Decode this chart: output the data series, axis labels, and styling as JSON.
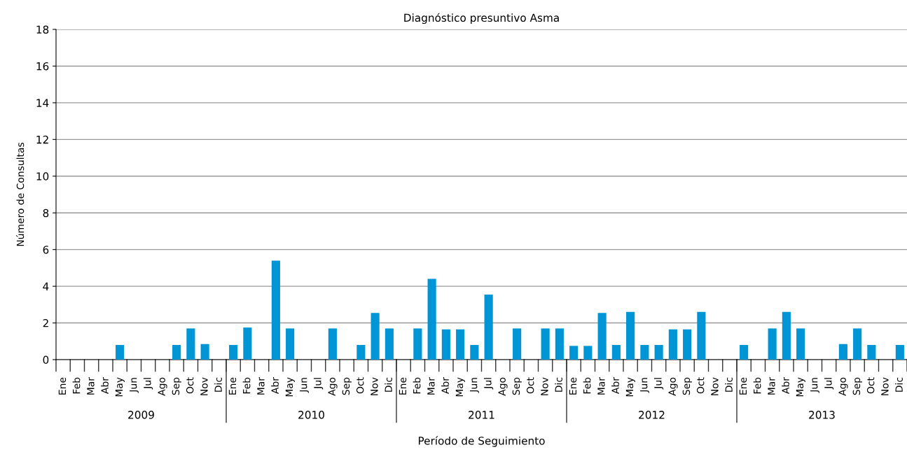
{
  "chart_data": {
    "type": "bar",
    "title": "Diagnóstico presuntivo Asma",
    "xlabel": "Período de Seguimiento",
    "ylabel": "Número de Consultas",
    "categories": [
      "Ene",
      "Feb",
      "Mar",
      "Abr",
      "May",
      "Jun",
      "Jul",
      "Ago",
      "Sep",
      "Oct",
      "Nov",
      "Dic",
      "Ene",
      "Feb",
      "Mar",
      "Abr",
      "May",
      "Jun",
      "Jul",
      "Ago",
      "Sep",
      "Oct",
      "Nov",
      "Dic",
      "Ene",
      "Feb",
      "Mar",
      "Abr",
      "May",
      "Jun",
      "Jul",
      "Ago",
      "Sep",
      "Oct",
      "Nov",
      "Dic",
      "Ene",
      "Feb",
      "Mar",
      "Abr",
      "May",
      "Jun",
      "Jul",
      "Ago",
      "Sep",
      "Oct",
      "Nov",
      "Dic",
      "Ene",
      "Feb",
      "Mar",
      "Abr",
      "May",
      "Jun",
      "Jul",
      "Ago",
      "Sep",
      "Oct",
      "Nov",
      "Dic"
    ],
    "values": [
      0,
      0,
      0,
      0,
      0.8,
      0,
      0,
      0,
      0.8,
      1.7,
      0.85,
      0,
      0.8,
      1.75,
      0,
      5.4,
      1.7,
      0,
      0,
      1.7,
      0,
      0.8,
      2.55,
      1.7,
      0,
      1.7,
      4.4,
      1.65,
      1.65,
      0.8,
      3.55,
      0,
      1.7,
      0,
      1.7,
      1.7,
      0.75,
      0.75,
      2.55,
      0.8,
      2.6,
      0.8,
      0.8,
      1.65,
      1.65,
      2.6,
      0,
      0,
      0.8,
      0,
      1.7,
      2.6,
      1.7,
      0,
      0,
      0.85,
      1.7,
      0.8,
      0,
      0.8
    ],
    "color": "#0096d6",
    "annotations": [
      "2009",
      "2010",
      "2011",
      "2012",
      "2013"
    ],
    "ylim": [
      0,
      18
    ],
    "yticks": [
      0,
      2,
      4,
      6,
      8,
      10,
      12,
      14,
      16,
      18
    ],
    "grid": "y",
    "legend": false
  }
}
